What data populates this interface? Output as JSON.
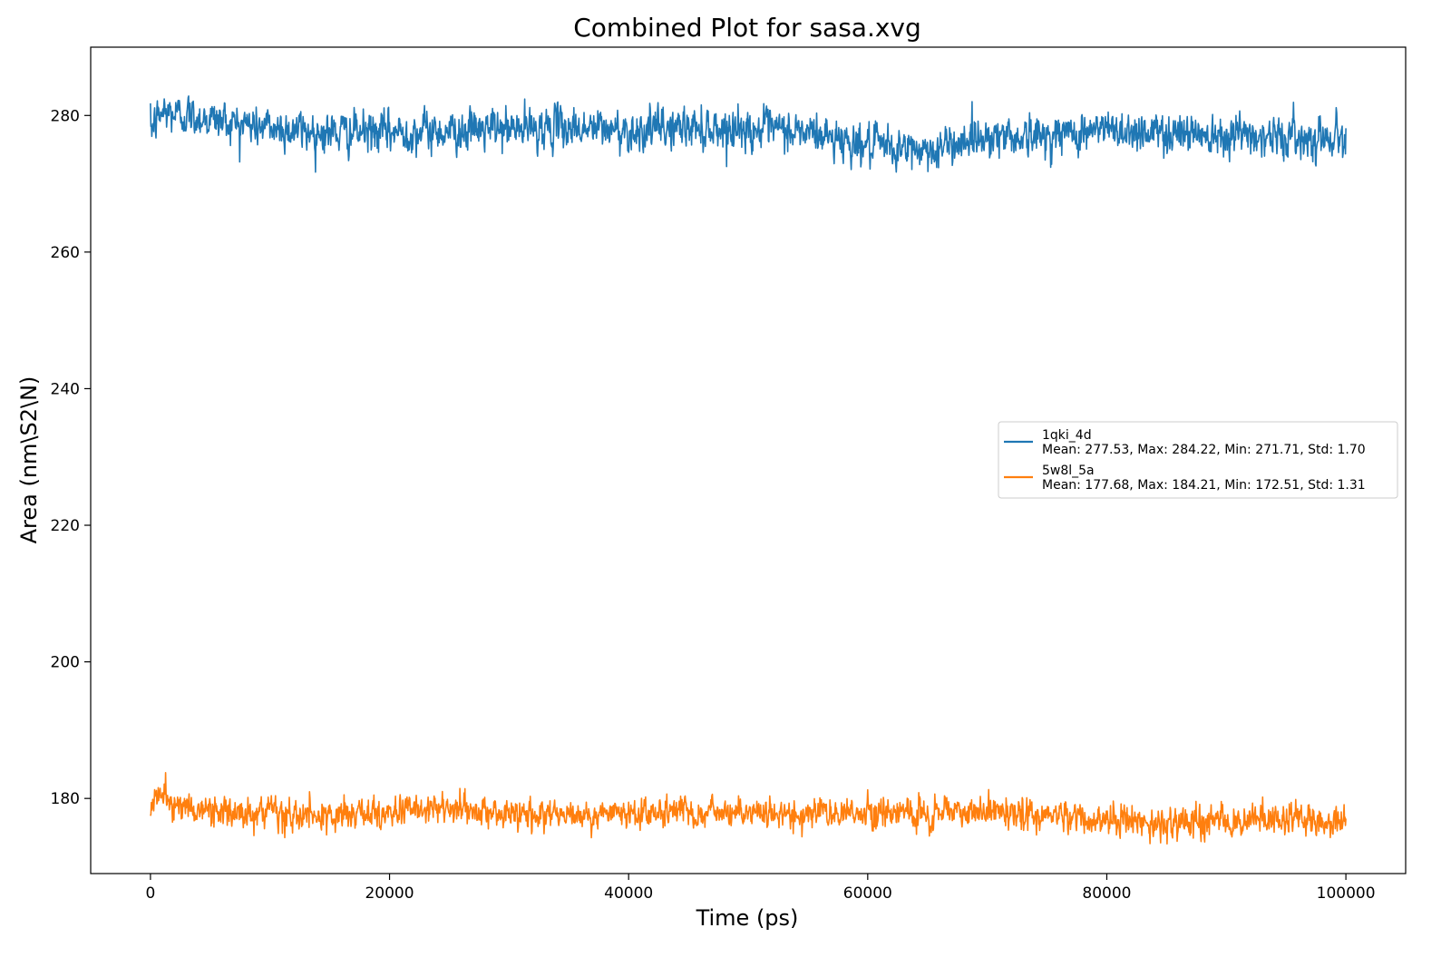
{
  "chart_data": {
    "type": "line",
    "title": "Combined Plot for sasa.xvg",
    "xlabel": "Time (ps)",
    "ylabel": "Area (nm\\S2\\N)",
    "xlim": [
      -5000,
      105000
    ],
    "ylim": [
      169,
      290
    ],
    "xticks": [
      0,
      20000,
      40000,
      60000,
      80000,
      100000
    ],
    "yticks": [
      180,
      200,
      220,
      240,
      260,
      280
    ],
    "grid": false,
    "legend_position": "center-right",
    "series": [
      {
        "name": "1qki_4d",
        "stats": "Mean: 277.53, Max: 284.22, Min: 271.71, Std: 1.70",
        "color": "#1f77b4",
        "trend": {
          "x": [
            0,
            1000,
            5000,
            10000,
            15000,
            20000,
            25000,
            30000,
            35000,
            40000,
            45000,
            50000,
            55000,
            58000,
            60000,
            63000,
            66000,
            68000,
            70000,
            75000,
            80000,
            85000,
            90000,
            95000,
            100000
          ],
          "y": [
            278.0,
            280.5,
            279.5,
            278.2,
            277.5,
            277.5,
            277.8,
            278.0,
            278.3,
            277.8,
            278.3,
            278.0,
            277.5,
            276.5,
            275.5,
            275.0,
            275.0,
            276.5,
            277.0,
            277.0,
            278.0,
            277.5,
            277.5,
            276.8,
            277.0
          ]
        },
        "noise_std": 1.45,
        "range": [
          271.71,
          284.22
        ]
      },
      {
        "name": "5w8l_5a",
        "stats": "Mean: 177.68, Max: 184.21, Min: 172.51, Std: 1.31",
        "color": "#ff7f0e",
        "trend": {
          "x": [
            0,
            500,
            3000,
            10000,
            15000,
            20000,
            25000,
            30000,
            35000,
            40000,
            45000,
            50000,
            55000,
            60000,
            65000,
            70000,
            75000,
            80000,
            85000,
            90000,
            95000,
            100000
          ],
          "y": [
            179.0,
            180.5,
            178.5,
            177.5,
            177.3,
            178.0,
            178.3,
            177.8,
            177.6,
            177.7,
            178.0,
            177.8,
            177.5,
            178.0,
            178.0,
            178.0,
            177.5,
            176.8,
            176.5,
            176.5,
            177.0,
            177.0
          ]
        },
        "noise_std": 1.1,
        "range": [
          172.51,
          184.21
        ]
      }
    ]
  }
}
